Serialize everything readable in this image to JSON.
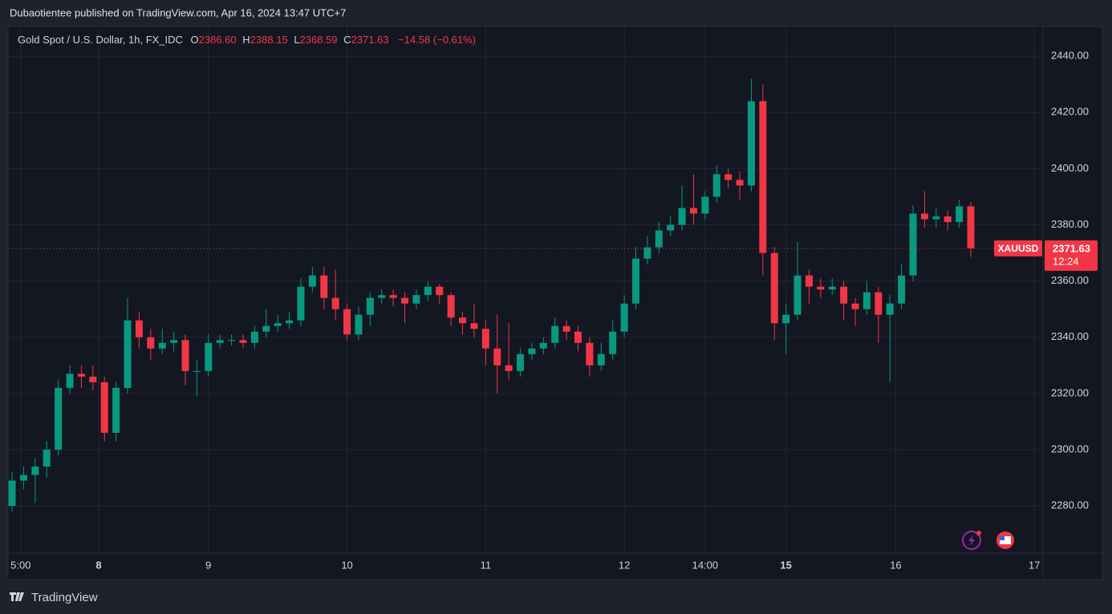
{
  "header": {
    "publisher": "Dubaotientee published on TradingView.com, Apr 16, 2024 13:47 UTC+7"
  },
  "footer": {
    "brand": "TradingView"
  },
  "chart_data": {
    "type": "candlestick",
    "title": "Gold Spot / U.S. Dollar, 1h, FX_IDC",
    "ohlc_legend": {
      "o_label": "O",
      "o": "2386.60",
      "h_label": "H",
      "h": "2388.15",
      "l_label": "L",
      "l": "2368.59",
      "c_label": "C",
      "c": "2371.63",
      "change": "−14.58 (−0.61%)"
    },
    "up_color": "#089981",
    "down_color": "#f23645",
    "x": [
      0,
      2,
      4,
      6,
      8,
      10,
      12,
      14,
      16,
      18,
      20,
      22,
      24,
      26,
      28,
      30,
      32,
      34,
      36,
      38,
      40,
      42,
      44,
      46,
      48,
      50,
      52,
      54,
      56,
      58,
      60,
      62,
      64,
      66,
      68,
      70,
      72,
      74,
      76,
      78,
      80,
      82,
      84,
      86,
      88,
      90,
      92,
      94,
      96,
      98,
      100,
      102,
      104,
      106,
      108,
      110,
      112,
      114,
      116,
      118,
      120,
      122,
      124,
      126,
      128,
      130,
      132,
      134,
      136,
      138,
      140,
      142,
      144,
      146,
      148,
      150,
      152,
      154,
      156,
      158,
      160,
      162,
      164,
      166
    ],
    "open": [
      2280,
      2289,
      2291,
      2294,
      2300,
      2322,
      2327,
      2326,
      2324,
      2306,
      2322,
      2346,
      2340,
      2336,
      2338,
      2339,
      2328,
      2328,
      2338,
      2339,
      2339,
      2338,
      2342,
      2344,
      2345,
      2346,
      2358,
      2362,
      2354,
      2350,
      2341,
      2348,
      2354,
      2355,
      2354,
      2352,
      2355,
      2358,
      2355,
      2347,
      2345,
      2343,
      2336,
      2330,
      2328,
      2334,
      2336,
      2338,
      2344,
      2342,
      2338,
      2330,
      2334,
      2342,
      2352,
      2368,
      2372,
      2378,
      2380,
      2386,
      2384,
      2390,
      2398,
      2396,
      2394,
      2424,
      2370,
      2345,
      2348,
      2362,
      2358,
      2357,
      2358,
      2352,
      2350,
      2356,
      2348,
      2352,
      2362,
      2384,
      2382,
      2383,
      2381,
      2386.6
    ],
    "high": [
      2292,
      2294,
      2297,
      2303,
      2325,
      2330,
      2330,
      2330,
      2326,
      2324,
      2354,
      2349,
      2343,
      2343,
      2342,
      2341,
      2332,
      2341,
      2341,
      2341,
      2341,
      2344,
      2350,
      2348,
      2349,
      2361,
      2365,
      2365,
      2364,
      2352,
      2351,
      2356,
      2357,
      2357,
      2356,
      2357,
      2360,
      2359,
      2356,
      2349,
      2352,
      2346,
      2348,
      2345,
      2336,
      2338,
      2340,
      2347,
      2346,
      2344,
      2340,
      2338,
      2346,
      2355,
      2372,
      2376,
      2381,
      2383,
      2394,
      2398,
      2392,
      2401,
      2400,
      2399,
      2432,
      2430,
      2372,
      2352,
      2374,
      2364,
      2361,
      2361,
      2360,
      2354,
      2360,
      2358,
      2355,
      2366,
      2387,
      2392,
      2386,
      2385,
      2389,
      2388.15
    ],
    "low": [
      2278,
      2286,
      2281,
      2290,
      2298,
      2320,
      2322,
      2321,
      2303,
      2303,
      2320,
      2336,
      2332,
      2334,
      2335,
      2323,
      2319,
      2326,
      2336,
      2337,
      2336,
      2336,
      2340,
      2342,
      2343,
      2344,
      2356,
      2350,
      2346,
      2339,
      2339,
      2344,
      2352,
      2351,
      2345,
      2350,
      2353,
      2352,
      2344,
      2341,
      2340,
      2330,
      2320,
      2325,
      2326,
      2332,
      2334,
      2336,
      2339,
      2335,
      2326,
      2328,
      2332,
      2340,
      2350,
      2366,
      2370,
      2376,
      2378,
      2380,
      2382,
      2388,
      2393,
      2389,
      2392,
      2362,
      2339,
      2334,
      2346,
      2352,
      2354,
      2355,
      2346,
      2344,
      2348,
      2338,
      2324,
      2350,
      2360,
      2379,
      2379,
      2378,
      2379,
      2368.59
    ],
    "close": [
      2289,
      2291,
      2294,
      2300,
      2322,
      2327,
      2326,
      2324,
      2306,
      2322,
      2346,
      2340,
      2336,
      2338,
      2339,
      2328,
      2328,
      2338,
      2339,
      2339,
      2338,
      2342,
      2344,
      2345,
      2346,
      2358,
      2362,
      2354,
      2350,
      2341,
      2348,
      2354,
      2355,
      2354,
      2352,
      2355,
      2358,
      2355,
      2347,
      2345,
      2343,
      2336,
      2330,
      2328,
      2334,
      2336,
      2338,
      2344,
      2342,
      2338,
      2330,
      2334,
      2342,
      2352,
      2368,
      2372,
      2378,
      2380,
      2386,
      2384,
      2390,
      2398,
      2396,
      2394,
      2424,
      2370,
      2345,
      2348,
      2362,
      2358,
      2357,
      2358,
      2352,
      2350,
      2356,
      2348,
      2352,
      2362,
      2384,
      2382,
      2383,
      2381,
      2386.6,
      2371.63
    ],
    "last": {
      "symbol": "XAUUSD",
      "price": 2371.63,
      "price_label": "2371.63",
      "countdown": "12:24"
    },
    "xlim": [
      -0.7,
      178.5
    ],
    "xticks": [
      {
        "value": 1.5,
        "label": "5:00"
      },
      {
        "value": 15,
        "label": "8"
      },
      {
        "value": 34,
        "label": "9"
      },
      {
        "value": 58,
        "label": "10"
      },
      {
        "value": 82,
        "label": "11"
      },
      {
        "value": 106,
        "label": "12"
      },
      {
        "value": 120,
        "label": "14:00"
      },
      {
        "value": 134,
        "label": "15"
      },
      {
        "value": 153,
        "label": "16"
      },
      {
        "value": 177,
        "label": "17"
      }
    ],
    "ylim": [
      2263.2,
      2450.6
    ],
    "yticks": [
      {
        "value": 2280,
        "label": "2280.00"
      },
      {
        "value": 2300,
        "label": "2300.00"
      },
      {
        "value": 2320,
        "label": "2320.00"
      },
      {
        "value": 2340,
        "label": "2340.00"
      },
      {
        "value": 2360,
        "label": "2360.00"
      },
      {
        "value": 2380,
        "label": "2380.00"
      },
      {
        "value": 2400,
        "label": "2400.00"
      },
      {
        "value": 2420,
        "label": "2420.00"
      },
      {
        "value": 2440,
        "label": "2440.00"
      }
    ],
    "grid": true
  }
}
